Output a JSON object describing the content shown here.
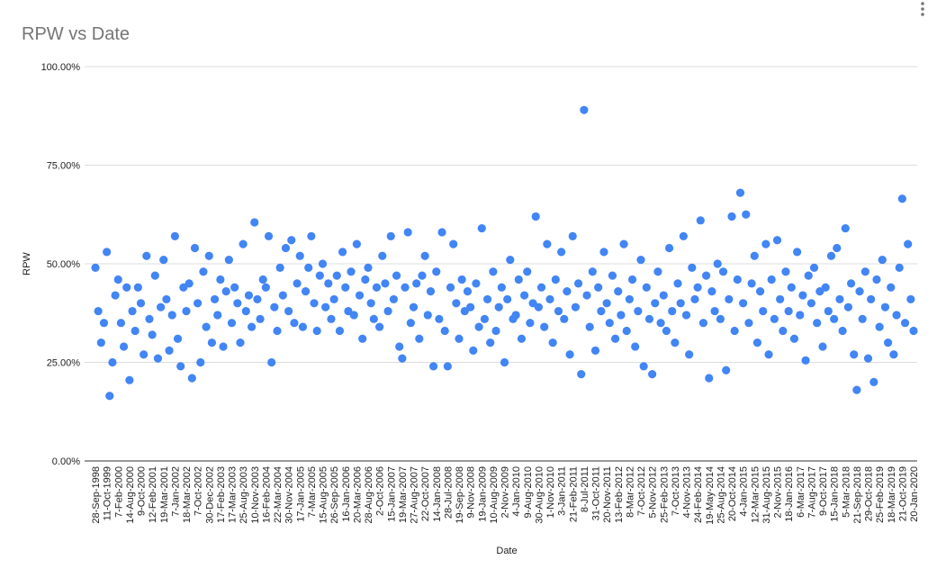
{
  "chart_data": {
    "type": "scatter",
    "title": "RPW vs Date",
    "x_label": "Date",
    "y_label": "RPW",
    "color": "#4285f4",
    "grid": true,
    "ylim": [
      0,
      100
    ],
    "yticks": [
      {
        "value": 0,
        "label": "0.00%"
      },
      {
        "value": 25,
        "label": "25.00%"
      },
      {
        "value": 50,
        "label": "50.00%"
      },
      {
        "value": 75,
        "label": "75.00%"
      },
      {
        "value": 100,
        "label": "100.00%"
      }
    ],
    "categories": [
      "28-Sep-1998",
      null,
      null,
      null,
      "11-Oct-1999",
      null,
      null,
      null,
      "7-Feb-2000",
      null,
      null,
      null,
      "14-Aug-2000",
      null,
      null,
      null,
      "9-Oct-2000",
      null,
      null,
      null,
      "12-Feb-2001",
      null,
      null,
      null,
      "19-Mar-2001",
      null,
      null,
      null,
      "7-Jan-2002",
      null,
      null,
      null,
      "18-Mar-2002",
      null,
      null,
      null,
      "7-Oct-2002",
      null,
      null,
      null,
      "30-Dec-2002",
      null,
      null,
      null,
      "17-Feb-2003",
      null,
      null,
      null,
      "17-Mar-2003",
      null,
      null,
      null,
      "25-Aug-2003",
      null,
      null,
      null,
      "10-Nov-2003",
      null,
      null,
      null,
      "16-Feb-2004",
      null,
      null,
      null,
      "22-Mar-2004",
      null,
      null,
      null,
      "30-Nov-2004",
      null,
      null,
      null,
      "17-Jan-2005",
      null,
      null,
      null,
      "7-Mar-2005",
      null,
      null,
      null,
      "15-Aug-2005",
      null,
      null,
      null,
      "26-Sep-2005",
      null,
      null,
      null,
      "16-Jan-2006",
      null,
      null,
      null,
      "20-Mar-2006",
      null,
      null,
      null,
      "28-Aug-2006",
      null,
      null,
      null,
      "2-Oct-2006",
      null,
      null,
      null,
      "15-Jan-2007",
      null,
      null,
      null,
      "19-Mar-2007",
      null,
      null,
      null,
      "27-Aug-2007",
      null,
      null,
      null,
      "22-Oct-2007",
      null,
      null,
      null,
      "14-Jan-2008",
      null,
      null,
      null,
      "28-Jul-2008",
      null,
      null,
      null,
      "19-Sep-2008",
      null,
      null,
      null,
      "9-Nov-2008",
      null,
      null,
      null,
      "19-Jan-2009",
      null,
      null,
      null,
      "10-Aug-2009",
      null,
      null,
      null,
      "2-Nov-2009",
      null,
      null,
      null,
      "4-Jan-2010",
      null,
      null,
      null,
      "9-Aug-2010",
      null,
      null,
      null,
      "30-Aug-2010",
      null,
      null,
      null,
      "1-Nov-2010",
      null,
      null,
      null,
      "3-Jan-2011",
      null,
      null,
      null,
      "21-Feb-2011",
      null,
      null,
      null,
      "8-Jul-2011",
      null,
      null,
      null,
      "31-Oct-2011",
      null,
      null,
      null,
      "20-Nov-2011",
      null,
      null,
      null,
      "13-Feb-2012",
      null,
      null,
      null,
      "8-Mar-2012",
      null,
      null,
      null,
      "7-Oct-2012",
      null,
      null,
      null,
      "5-Nov-2012",
      null,
      null,
      null,
      "25-Feb-2013",
      null,
      null,
      null,
      "7-Oct-2013",
      null,
      null,
      null,
      "4-Nov-2013",
      null,
      null,
      null,
      "24-Feb-2014",
      null,
      null,
      null,
      "19-May-2014",
      null,
      null,
      null,
      "25-Aug-2014",
      null,
      null,
      null,
      "20-Oct-2014",
      null,
      null,
      null,
      "4-Jan-2015",
      null,
      null,
      null,
      "12-Mar-2015",
      null,
      null,
      null,
      "31-Aug-2015",
      null,
      null,
      null,
      "2-Nov-2015",
      null,
      null,
      null,
      "18-Jan-2016",
      null,
      null,
      null,
      "6-Mar-2017",
      null,
      null,
      null,
      "7-Aug-2017",
      null,
      null,
      null,
      "9-Oct-2017",
      null,
      null,
      null,
      "15-Jan-2018",
      null,
      null,
      null,
      "5-Mar-2018",
      null,
      null,
      null,
      "21-Sep-2018",
      null,
      null,
      null,
      "29-Oct-2018",
      null,
      null,
      null,
      "25-Feb-2019",
      null,
      null,
      null,
      "18-Mar-2019",
      null,
      null,
      null,
      "21-Oct-2019",
      null,
      null,
      null,
      "20-Jan-2020"
    ],
    "values": [
      49,
      38,
      30,
      35,
      53,
      16.5,
      25,
      42,
      46,
      35,
      29,
      44,
      20.5,
      38,
      33,
      44,
      40,
      27,
      52,
      36,
      32,
      47,
      26,
      39,
      51,
      41,
      28,
      37,
      57,
      31,
      24,
      44,
      38,
      45,
      21,
      54,
      40,
      25,
      48,
      34,
      52,
      30,
      41,
      37,
      46,
      29,
      43,
      51,
      35,
      44,
      40,
      30,
      55,
      38,
      42,
      34,
      60.5,
      41,
      36,
      46,
      44,
      57,
      25,
      39,
      33,
      49,
      42,
      54,
      38,
      56,
      35,
      45,
      52,
      34,
      43,
      49,
      57,
      40,
      33,
      47,
      50,
      39,
      45,
      36,
      41,
      47,
      33,
      53,
      44,
      38,
      48,
      37,
      55,
      42,
      31,
      46,
      49,
      40,
      36,
      44,
      34,
      52,
      45,
      38,
      57,
      41,
      47,
      29,
      26,
      44,
      58,
      35,
      39,
      45,
      31,
      47,
      52,
      37,
      43,
      24,
      48,
      36,
      58,
      33,
      24,
      44,
      55,
      40,
      31,
      46,
      38,
      43,
      39,
      28,
      45,
      34,
      59,
      36,
      41,
      30,
      48,
      33,
      39,
      44,
      25,
      41,
      51,
      36,
      37,
      46,
      31,
      42,
      48,
      35,
      40,
      62,
      39,
      44,
      34,
      55,
      41,
      30,
      46,
      38,
      53,
      36,
      43,
      27,
      57,
      39,
      45,
      22,
      89,
      42,
      34,
      48,
      28,
      44,
      38,
      53,
      40,
      35,
      47,
      31,
      43,
      37,
      55,
      33,
      41,
      46,
      29,
      38,
      51,
      24,
      44,
      36,
      22,
      40,
      48,
      35,
      42,
      33,
      54,
      38,
      30,
      45,
      40,
      57,
      37,
      27,
      49,
      41,
      44,
      61,
      35,
      47,
      21,
      43,
      38,
      50,
      36,
      48,
      23,
      41,
      62,
      33,
      46,
      68,
      40,
      62.5,
      35,
      45,
      52,
      30,
      43,
      38,
      55,
      27,
      46,
      36,
      56,
      41,
      33,
      48,
      38,
      44,
      31,
      53,
      37,
      42,
      25.5,
      47,
      40,
      49,
      35,
      43,
      29,
      44,
      38,
      52,
      36,
      54,
      41,
      33,
      59,
      39,
      45,
      27,
      18,
      43,
      36,
      48,
      26,
      41,
      20,
      46,
      34,
      51,
      39,
      30,
      44,
      27,
      37,
      49,
      66.5,
      35,
      55,
      41,
      33
    ]
  }
}
